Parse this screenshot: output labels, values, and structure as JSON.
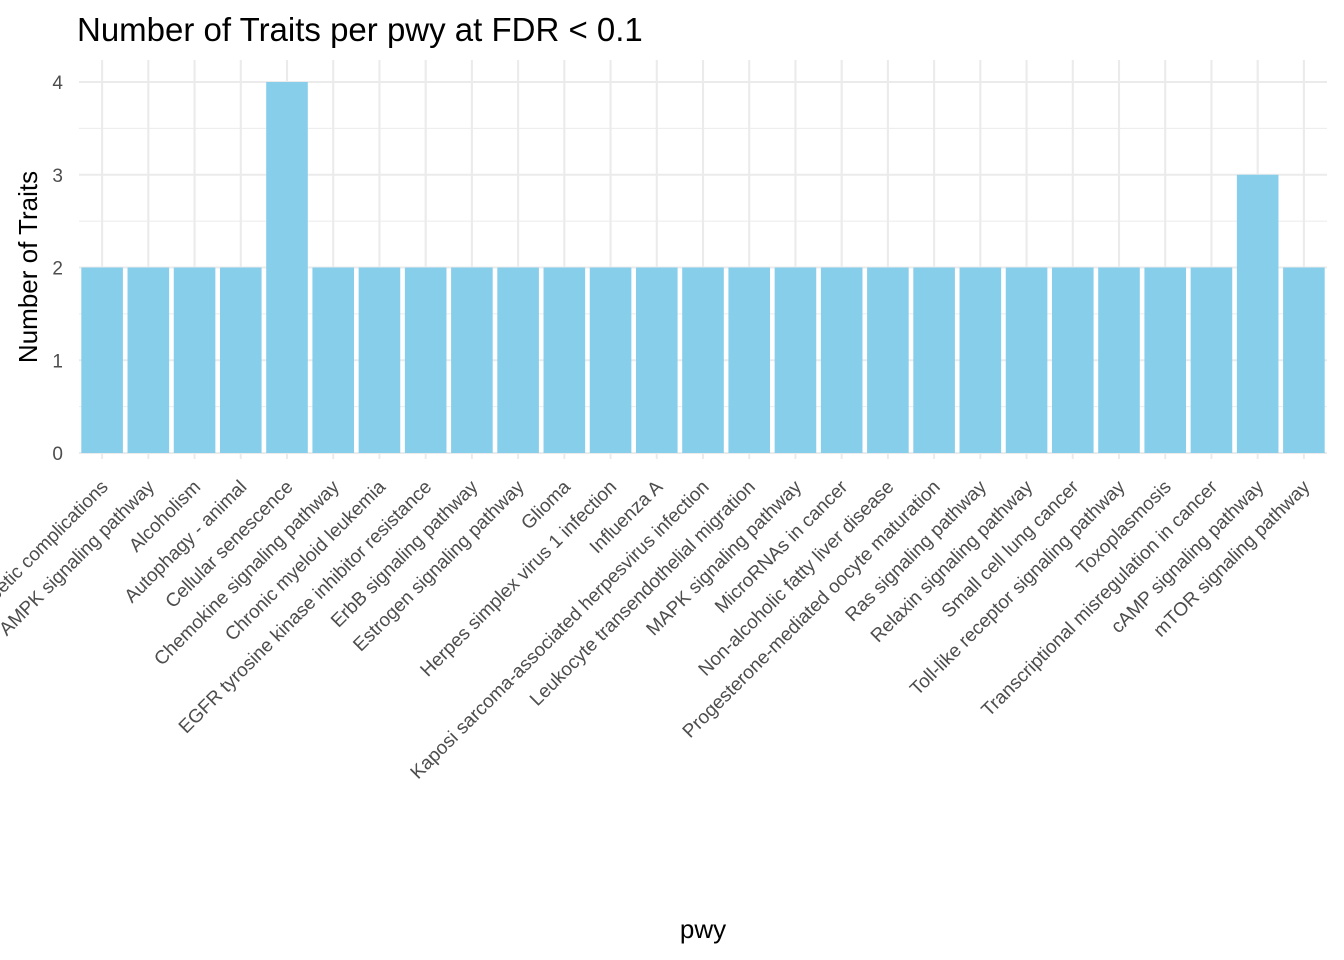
{
  "chart_data": {
    "type": "bar",
    "title": "Number of Traits per pwy at FDR < 0.1",
    "xlabel": "pwy",
    "ylabel": "Number of Traits",
    "categories": [
      "AGE-RAGE signaling pathway in diabetic complications",
      "AMPK signaling pathway",
      "Alcoholism",
      "Autophagy - animal",
      "Cellular senescence",
      "Chemokine signaling pathway",
      "Chronic myeloid leukemia",
      "EGFR tyrosine kinase inhibitor resistance",
      "ErbB signaling pathway",
      "Estrogen signaling pathway",
      "Glioma",
      "Herpes simplex virus 1 infection",
      "Influenza A",
      "Kaposi sarcoma-associated herpesvirus infection",
      "Leukocyte transendothelial migration",
      "MAPK signaling pathway",
      "MicroRNAs in cancer",
      "Non-alcoholic fatty liver disease",
      "Progesterone-mediated oocyte maturation",
      "Ras signaling pathway",
      "Relaxin signaling pathway",
      "Small cell lung cancer",
      "Toll-like receptor signaling pathway",
      "Toxoplasmosis",
      "Transcriptional misregulation in cancer",
      "cAMP signaling pathway",
      "mTOR signaling pathway"
    ],
    "values": [
      2,
      2,
      2,
      2,
      4,
      2,
      2,
      2,
      2,
      2,
      2,
      2,
      2,
      2,
      2,
      2,
      2,
      2,
      2,
      2,
      2,
      2,
      2,
      2,
      2,
      3,
      2
    ],
    "yticks": [
      0,
      1,
      2,
      3,
      4
    ],
    "ylim": [
      0,
      4
    ],
    "grid": true,
    "legend": "none",
    "colors": {
      "bar": "#87CEEB",
      "grid": "#ebebeb",
      "tick_text": "#4d4d4d"
    }
  }
}
